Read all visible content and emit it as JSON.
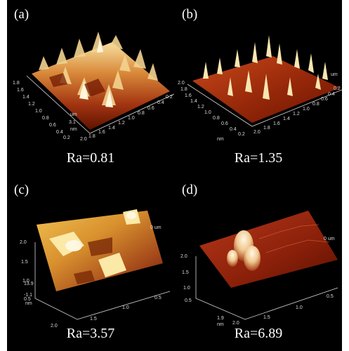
{
  "panels": [
    {
      "letter": "(a)",
      "ra": "Ra=0.81",
      "ticks": {
        "left": [
          "1.8",
          "1.6",
          "1.4",
          "1.2",
          "1.0",
          "0.8",
          "0.6",
          "0.4",
          "0.2"
        ],
        "right": [
          "2.0",
          "1.8",
          "1.6",
          "1.4",
          "1.2",
          "1.0",
          "0.8",
          "0.6",
          "0.4",
          "0.2"
        ],
        "z": [
          "um",
          "3.1",
          "nm"
        ]
      }
    },
    {
      "letter": "(b)",
      "ra": "Ra=1.35",
      "ticks": {
        "left": [
          "2.0",
          "1.8",
          "1.6",
          "1.4",
          "1.2",
          "1.0",
          "0.8",
          "0.6",
          "0.4",
          "0.2"
        ],
        "right": [
          "2.0",
          "1.8",
          "1.6",
          "1.4",
          "1.2",
          "1.0",
          "0.8",
          "0.6",
          "0.4",
          "0.2"
        ],
        "z": [
          "um",
          "nm"
        ]
      }
    },
    {
      "letter": "(c)",
      "ra": "Ra=3.57",
      "ticks": {
        "left": [
          "2.0",
          "1.5",
          "1.0",
          "0.5"
        ],
        "bottom": [
          "2.0",
          "1.5",
          "1.0",
          "0.5"
        ],
        "z": [
          "0 um",
          "13.9",
          "-1.1",
          "nm"
        ]
      }
    },
    {
      "letter": "(d)",
      "ra": "Ra=6.89",
      "ticks": {
        "left": [
          "2.0",
          "1.5",
          "1.0",
          "0.5"
        ],
        "bottom": [
          "2.0",
          "1.5",
          "1.0",
          "0.5"
        ],
        "z": [
          "0 um",
          "1.9",
          "nm"
        ]
      }
    }
  ],
  "colors": {
    "background": "#000000",
    "surface_dark": "#6b1400",
    "surface_mid": "#c0441a",
    "surface_light": "#f2d890",
    "peak": "#fff4d8"
  }
}
